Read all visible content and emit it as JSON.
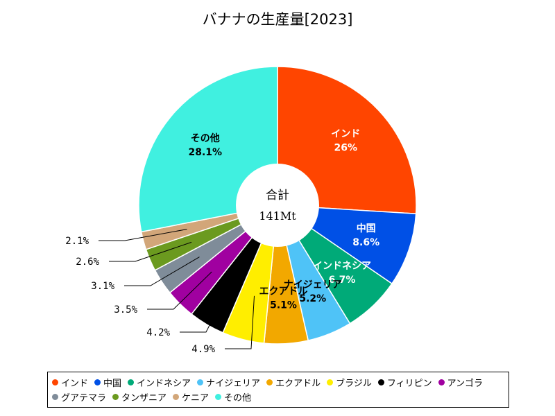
{
  "chart_data": {
    "type": "pie",
    "title": "バナナの生産量[2023]",
    "center_label": "合計",
    "center_value": "141Mt",
    "slices": [
      {
        "name": "インド",
        "value": 26,
        "label": "26%",
        "color": "#ff4500",
        "inside": true
      },
      {
        "name": "中国",
        "value": 8.6,
        "label": "8.6%",
        "color": "#0050e6",
        "inside": true
      },
      {
        "name": "インドネシア",
        "value": 6.7,
        "label": "6.7%",
        "color": "#00aa78",
        "inside": true
      },
      {
        "name": "ナイジェリア",
        "value": 5.2,
        "label": "5.2%",
        "color": "#4fc3f7",
        "inside": true
      },
      {
        "name": "エクアドル",
        "value": 5.1,
        "label": "5.1%",
        "color": "#f2a800",
        "inside": true
      },
      {
        "name": "ブラジル",
        "value": 4.9,
        "label": "4.9%",
        "color": "#ffee00",
        "inside": false
      },
      {
        "name": "フィリピン",
        "value": 4.2,
        "label": "4.2%",
        "color": "#000000",
        "inside": false
      },
      {
        "name": "アンゴラ",
        "value": 3.5,
        "label": "3.5%",
        "color": "#a000a0",
        "inside": false
      },
      {
        "name": "グアテマラ",
        "value": 3.1,
        "label": "3.1%",
        "color": "#7f8c99",
        "inside": false
      },
      {
        "name": "タンザニア",
        "value": 2.6,
        "label": "2.6%",
        "color": "#6b9a1f",
        "inside": false
      },
      {
        "name": "ケニア",
        "value": 2.1,
        "label": "2.1%",
        "color": "#d2a679",
        "inside": false
      },
      {
        "name": "その他",
        "value": 28.1,
        "label": "28.1%",
        "color": "#40f0e0",
        "inside": true
      }
    ],
    "legend_position": "bottom"
  }
}
